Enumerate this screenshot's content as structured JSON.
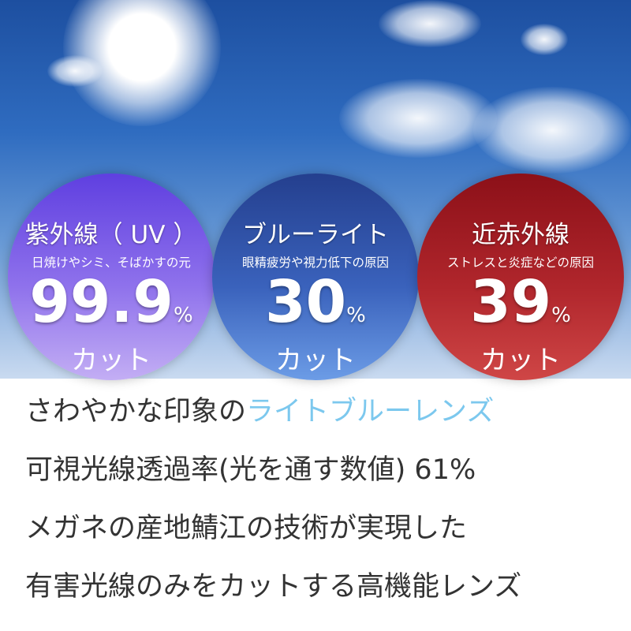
{
  "circles": [
    {
      "title": "紫外線（ UV ）",
      "subtitle": "日焼けやシミ、そばかすの元",
      "value": "99.9",
      "unit": "%",
      "cut": "カット",
      "color": "#7b5ce8"
    },
    {
      "title": "ブルーライト",
      "subtitle": "眼精疲労や視力低下の原因",
      "value": "30",
      "unit": "%",
      "cut": "カット",
      "color": "#3458b0"
    },
    {
      "title": "近赤外線",
      "subtitle": "ストレスと炎症などの原因",
      "value": "39",
      "unit": "%",
      "cut": "カット",
      "color": "#b0262c"
    }
  ],
  "lines": {
    "l1a": "さわやかな印象の",
    "l1b": "ライトブルーレンズ",
    "l2": "可視光線透過率(光を通す数値) 61%",
    "l3": "メガネの産地鯖江の技術が実現した",
    "l4": "有害光線のみをカットする高機能レンズ"
  },
  "colors": {
    "highlight": "#7cc8ee",
    "text": "#333333"
  }
}
